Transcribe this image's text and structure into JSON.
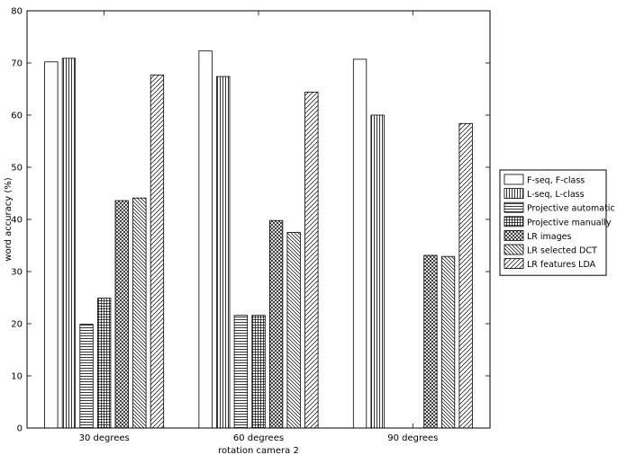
{
  "chart_data": {
    "type": "bar",
    "title": "",
    "xlabel": "rotation camera 2",
    "ylabel": "word accuracy (%)",
    "ylim": [
      0,
      80
    ],
    "yticks": [
      0,
      10,
      20,
      30,
      40,
      50,
      60,
      70,
      80
    ],
    "grid": false,
    "legend_position": "right",
    "categories": [
      "30 degrees",
      "60 degrees",
      "90 degrees"
    ],
    "series": [
      {
        "name": "F-seq, F-class",
        "pattern": "blank",
        "values": [
          70.2,
          72.3,
          70.7
        ]
      },
      {
        "name": "L-seq, L-class",
        "pattern": "vertical",
        "values": [
          70.9,
          67.4,
          60.0
        ]
      },
      {
        "name": "Projective automatic",
        "pattern": "horizontal",
        "values": [
          19.9,
          21.6,
          null
        ]
      },
      {
        "name": "Projective manually",
        "pattern": "grid",
        "values": [
          24.9,
          21.6,
          null
        ]
      },
      {
        "name": "LR images",
        "pattern": "crosshatch",
        "values": [
          43.6,
          39.8,
          33.1
        ]
      },
      {
        "name": "LR selected DCT",
        "pattern": "backslash",
        "values": [
          44.1,
          37.5,
          32.9
        ]
      },
      {
        "name": "LR features LDA",
        "pattern": "slash",
        "values": [
          67.7,
          64.4,
          58.4
        ]
      }
    ]
  }
}
